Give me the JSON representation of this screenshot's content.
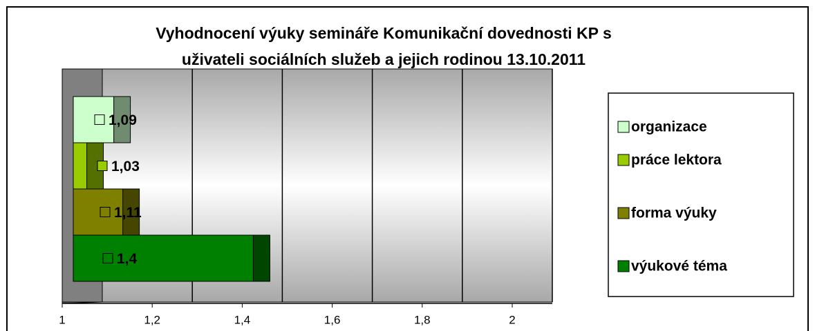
{
  "chart_data": {
    "type": "bar",
    "orientation": "horizontal",
    "title": [
      "Vyhodnocení výuky  semináře Komunikační dovednosti KP s",
      "uživateli sociálních služeb a jejich rodinou 13.10.2011"
    ],
    "categories": [
      "organizace",
      "práce lektora",
      "forma výuky",
      "výukové téma"
    ],
    "values": [
      1.09,
      1.03,
      1.11,
      1.4
    ],
    "value_labels": [
      "1,09",
      "1,03",
      "1,11",
      "1,4"
    ],
    "colors": [
      "#ccffcc",
      "#99cc00",
      "#808000",
      "#008000"
    ],
    "xlim": [
      1,
      2
    ],
    "xticks": [
      1,
      {
        "value": 1.2,
        "label": "1,2"
      },
      {
        "value": 1.4,
        "label": "1,4"
      },
      {
        "value": 1.6,
        "label": "1,6"
      },
      {
        "value": 1.8,
        "label": "1,8"
      },
      2
    ],
    "grid": true,
    "legend": "right"
  }
}
